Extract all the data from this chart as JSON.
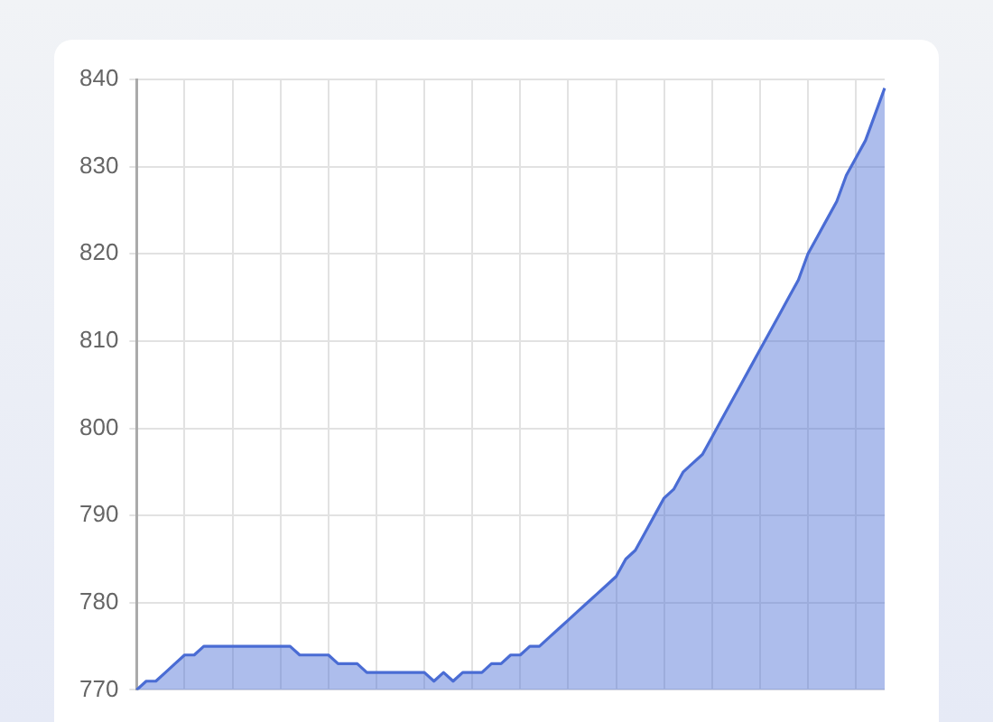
{
  "chart_data": {
    "type": "area",
    "categories": [
      null,
      null,
      null,
      null,
      null,
      null,
      null,
      null,
      null,
      null,
      null,
      null,
      null,
      null,
      null,
      null,
      null,
      null,
      null,
      null,
      null,
      null,
      null,
      null,
      null,
      null,
      null,
      null,
      null,
      null,
      null,
      null,
      null,
      null,
      null,
      null,
      null,
      null,
      null,
      null,
      null,
      null,
      null,
      null,
      null,
      null,
      null,
      null,
      null,
      null,
      null,
      null,
      null,
      null,
      null,
      null,
      null,
      null,
      null,
      null,
      null,
      null,
      null,
      null,
      null,
      null,
      null,
      null,
      null,
      null,
      null,
      null,
      null,
      null,
      null,
      null,
      null,
      null,
      null
    ],
    "series": [
      {
        "color": "#4a6cd4",
        "values": [
          770,
          771,
          771,
          772,
          773,
          774,
          774,
          775,
          775,
          775,
          775,
          775,
          775,
          775,
          775,
          775,
          775,
          774,
          774,
          774,
          774,
          773,
          773,
          773,
          772,
          772,
          772,
          772,
          772,
          772,
          772,
          771,
          772,
          771,
          772,
          772,
          772,
          773,
          773,
          774,
          774,
          775,
          775,
          776,
          777,
          778,
          779,
          780,
          781,
          782,
          783,
          785,
          786,
          788,
          790,
          792,
          793,
          795,
          796,
          797,
          799,
          801,
          803,
          805,
          807,
          809,
          811,
          813,
          815,
          817,
          820,
          822,
          824,
          826,
          829,
          831,
          833,
          836,
          839
        ]
      }
    ],
    "ylim": [
      770,
      840
    ],
    "yticks": [
      770,
      780,
      790,
      800,
      810,
      820,
      830,
      840
    ],
    "grid": true,
    "legend": false,
    "tick_labels": "y",
    "marker": "none",
    "line_style": "solid"
  }
}
